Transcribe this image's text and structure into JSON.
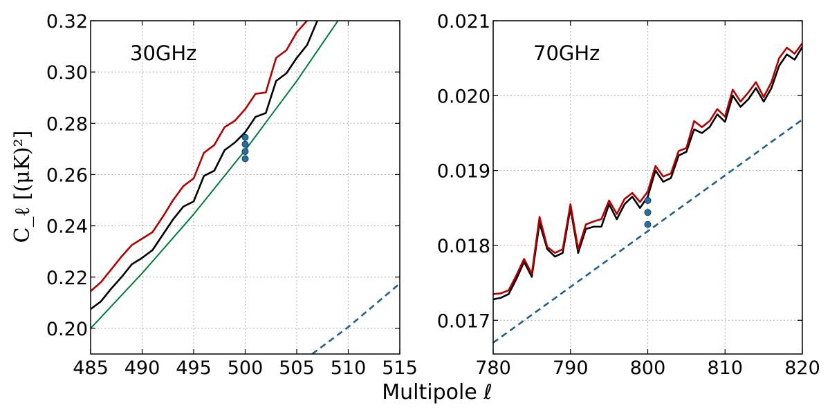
{
  "figure": {
    "xlabel": "Multipole ℓ",
    "ylabel": "C_ℓ [(μK)²]"
  },
  "colors": {
    "red": "#b00000",
    "black": "#000000",
    "green": "#007a3d",
    "blue": "#1f5f8b",
    "marker": "#2a6ea0"
  },
  "chart_data": [
    {
      "type": "line",
      "label": "30GHz",
      "xlim": [
        485,
        515
      ],
      "ylim": [
        0.19,
        0.32
      ],
      "xticks": [
        485,
        490,
        495,
        500,
        505,
        510,
        515
      ],
      "xtick_labels": [
        "485",
        "490",
        "495",
        "500",
        "505",
        "510",
        "515"
      ],
      "yticks": [
        0.2,
        0.22,
        0.24,
        0.26,
        0.28,
        0.3,
        0.32
      ],
      "ytick_labels": [
        "0.20",
        "0.22",
        "0.24",
        "0.26",
        "0.28",
        "0.30",
        "0.32"
      ],
      "grid": true,
      "series": [
        {
          "color": "red",
          "style": "solid",
          "x": [
            485,
            486,
            487,
            488,
            489,
            490,
            491,
            492,
            493,
            494,
            495,
            496,
            497,
            498,
            499,
            500,
            501,
            502,
            503,
            504,
            505,
            506
          ],
          "y": [
            0.2145,
            0.218,
            0.223,
            0.228,
            0.2325,
            0.235,
            0.2375,
            0.2435,
            0.25,
            0.2555,
            0.2585,
            0.2685,
            0.2715,
            0.2785,
            0.281,
            0.2855,
            0.2915,
            0.292,
            0.3055,
            0.3085,
            0.3155,
            0.32
          ]
        },
        {
          "color": "black",
          "style": "solid",
          "x": [
            485,
            486,
            487,
            488,
            489,
            490,
            491,
            492,
            493,
            494,
            495,
            496,
            497,
            498,
            499,
            500,
            501,
            502,
            503,
            504,
            505,
            506,
            507
          ],
          "y": [
            0.2075,
            0.2105,
            0.2155,
            0.22,
            0.225,
            0.2275,
            0.2305,
            0.2365,
            0.2425,
            0.2475,
            0.2495,
            0.2595,
            0.2615,
            0.2695,
            0.2725,
            0.2765,
            0.2825,
            0.284,
            0.2965,
            0.2995,
            0.3055,
            0.3105,
            0.32
          ]
        },
        {
          "color": "green",
          "style": "solid",
          "x": [
            485,
            490,
            495,
            500,
            505,
            509
          ],
          "y": [
            0.2,
            0.2215,
            0.2445,
            0.2695,
            0.2965,
            0.32
          ]
        },
        {
          "color": "blue",
          "style": "dashed",
          "x": [
            506.5,
            510,
            515
          ],
          "y": [
            0.19,
            0.2005,
            0.2175
          ]
        }
      ],
      "points": {
        "color": "marker",
        "x": [
          500,
          500,
          500,
          500
        ],
        "y": [
          0.2662,
          0.269,
          0.2718,
          0.2745
        ]
      }
    },
    {
      "type": "line",
      "label": "70GHz",
      "xlim": [
        780,
        820
      ],
      "ylim": [
        0.01655,
        0.021
      ],
      "xticks": [
        780,
        790,
        800,
        810,
        820
      ],
      "xtick_labels": [
        "780",
        "790",
        "800",
        "810",
        "820"
      ],
      "yticks": [
        0.017,
        0.018,
        0.019,
        0.02,
        0.021
      ],
      "ytick_labels": [
        "0.017",
        "0.018",
        "0.019",
        "0.020",
        "0.021"
      ],
      "grid": true,
      "series": [
        {
          "color": "black",
          "style": "solid",
          "x": [
            780,
            781,
            782,
            783,
            784,
            785,
            786,
            787,
            788,
            789,
            790,
            791,
            792,
            793,
            794,
            795,
            796,
            797,
            798,
            799,
            800,
            801,
            802,
            803,
            804,
            805,
            806,
            807,
            808,
            809,
            810,
            811,
            812,
            813,
            814,
            815,
            816,
            817,
            818,
            819,
            820
          ],
          "y": [
            0.01728,
            0.0173,
            0.01735,
            0.01755,
            0.01778,
            0.01758,
            0.0183,
            0.01795,
            0.01785,
            0.0179,
            0.0185,
            0.0179,
            0.01822,
            0.01825,
            0.01825,
            0.01855,
            0.01835,
            0.01855,
            0.01865,
            0.0185,
            0.01865,
            0.019,
            0.01885,
            0.0189,
            0.0192,
            0.01925,
            0.01955,
            0.0195,
            0.01958,
            0.01975,
            0.01965,
            0.02,
            0.01985,
            0.01995,
            0.0201,
            0.01992,
            0.0201,
            0.0204,
            0.02055,
            0.02048,
            0.02065
          ]
        },
        {
          "color": "red",
          "style": "solid",
          "x": [
            780,
            781,
            782,
            783,
            784,
            785,
            786,
            787,
            788,
            789,
            790,
            791,
            792,
            793,
            794,
            795,
            796,
            797,
            798,
            799,
            800,
            801,
            802,
            803,
            804,
            805,
            806,
            807,
            808,
            809,
            810,
            811,
            812,
            813,
            814,
            815,
            816,
            817,
            818,
            819,
            820
          ],
          "y": [
            0.01735,
            0.01736,
            0.0174,
            0.0176,
            0.01782,
            0.01762,
            0.01838,
            0.01798,
            0.0179,
            0.01795,
            0.01855,
            0.01795,
            0.01828,
            0.01832,
            0.01835,
            0.0186,
            0.01842,
            0.01862,
            0.0187,
            0.01858,
            0.01872,
            0.01906,
            0.01892,
            0.01896,
            0.01926,
            0.0193,
            0.01966,
            0.01958,
            0.01966,
            0.01982,
            0.01972,
            0.02008,
            0.01992,
            0.02004,
            0.02018,
            0.01998,
            0.02018,
            0.0205,
            0.02064,
            0.02056,
            0.0207
          ]
        },
        {
          "color": "blue",
          "style": "dashed",
          "x": [
            780,
            820
          ],
          "y": [
            0.0167,
            0.01968
          ]
        }
      ],
      "points": {
        "color": "marker",
        "x": [
          800,
          800,
          800
        ],
        "y": [
          0.01828,
          0.01844,
          0.0186
        ]
      }
    }
  ]
}
